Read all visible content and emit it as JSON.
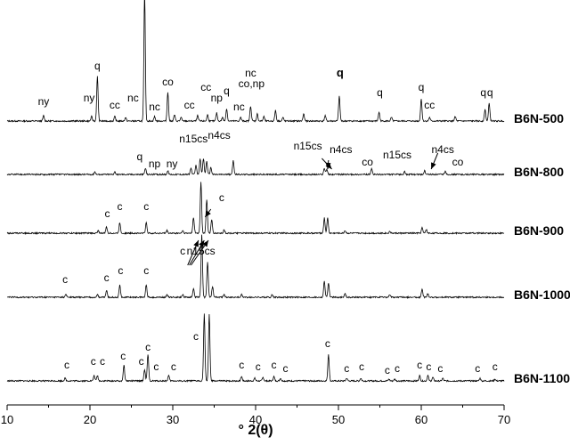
{
  "chart_data": {
    "type": "line",
    "xlabel": "° 2(θ)",
    "xlim": [
      10,
      70
    ],
    "xticks": [
      10,
      20,
      30,
      40,
      50,
      60,
      70
    ],
    "yaxis_visible": false,
    "series": [
      {
        "name": "B6N-500",
        "baseline": 0,
        "peaks": [
          [
            14.4,
            6
          ],
          [
            20.2,
            5
          ],
          [
            20.9,
            50
          ],
          [
            23.0,
            5
          ],
          [
            24.3,
            4
          ],
          [
            26.6,
            145
          ],
          [
            27.8,
            5
          ],
          [
            29.4,
            33
          ],
          [
            30.2,
            7
          ],
          [
            31.0,
            4
          ],
          [
            33.0,
            6
          ],
          [
            34.2,
            7
          ],
          [
            35.3,
            9
          ],
          [
            36.0,
            4
          ],
          [
            36.5,
            14
          ],
          [
            38.2,
            4
          ],
          [
            39.4,
            17
          ],
          [
            40.2,
            8
          ],
          [
            41.0,
            5
          ],
          [
            42.4,
            12
          ],
          [
            43.3,
            4
          ],
          [
            45.8,
            8
          ],
          [
            48.4,
            6
          ],
          [
            50.1,
            28
          ],
          [
            54.9,
            10
          ],
          [
            56.4,
            4
          ],
          [
            60.0,
            25
          ],
          [
            61.0,
            4
          ],
          [
            64.1,
            5
          ],
          [
            67.7,
            13
          ],
          [
            68.2,
            20
          ]
        ],
        "labels": [
          {
            "text": "ny",
            "x": 14.4,
            "y": 18
          },
          {
            "text": "ny",
            "x": 19.9,
            "y": 22
          },
          {
            "text": "q",
            "x": 20.9,
            "y": 58
          },
          {
            "text": "cc",
            "x": 23.0,
            "y": 14
          },
          {
            "text": "nc",
            "x": 25.2,
            "y": 22
          },
          {
            "text": "nc",
            "x": 27.8,
            "y": 12
          },
          {
            "text": "co",
            "x": 29.4,
            "y": 40
          },
          {
            "text": "cc",
            "x": 32.0,
            "y": 14
          },
          {
            "text": "cc",
            "x": 34.0,
            "y": 34
          },
          {
            "text": "np",
            "x": 35.3,
            "y": 22
          },
          {
            "text": "q",
            "x": 36.5,
            "y": 30
          },
          {
            "text": "nc",
            "x": 38.0,
            "y": 12
          },
          {
            "text": "nc",
            "x": 39.4,
            "y": 50
          },
          {
            "text": "co,np",
            "x": 39.5,
            "y": 38
          },
          {
            "text": "q",
            "x": 50.2,
            "y": 50,
            "bold": true
          },
          {
            "text": "q",
            "x": 55.0,
            "y": 28
          },
          {
            "text": "q",
            "x": 60.0,
            "y": 34
          },
          {
            "text": "cc",
            "x": 61.0,
            "y": 14
          },
          {
            "text": "q",
            "x": 67.5,
            "y": 28
          },
          {
            "text": "q",
            "x": 68.3,
            "y": 28
          }
        ]
      },
      {
        "name": "B6N-800",
        "baseline": 0,
        "peaks": [
          [
            20.6,
            3
          ],
          [
            23.0,
            3
          ],
          [
            26.7,
            7
          ],
          [
            29.4,
            4
          ],
          [
            32.2,
            7
          ],
          [
            32.8,
            10
          ],
          [
            33.3,
            17
          ],
          [
            33.7,
            18
          ],
          [
            34.1,
            15
          ],
          [
            34.6,
            8
          ],
          [
            37.3,
            16
          ],
          [
            48.3,
            7
          ],
          [
            48.6,
            6
          ],
          [
            54.0,
            6
          ],
          [
            58.0,
            3
          ],
          [
            60.4,
            4
          ],
          [
            62.9,
            4
          ]
        ],
        "labels": [
          {
            "text": "q",
            "x": 26.0,
            "y": 16
          },
          {
            "text": "np",
            "x": 27.8,
            "y": 8
          },
          {
            "text": "ny",
            "x": 29.9,
            "y": 8
          },
          {
            "text": "n15cs",
            "x": 32.5,
            "y": 36
          },
          {
            "text": "n4cs",
            "x": 35.6,
            "y": 40
          },
          {
            "text": "n15cs",
            "x": 46.3,
            "y": 28
          },
          {
            "text": "n4cs",
            "x": 50.3,
            "y": 24
          },
          {
            "text": "co",
            "x": 53.5,
            "y": 10
          },
          {
            "text": "n15cs",
            "x": 57.1,
            "y": 18
          },
          {
            "text": "n4cs",
            "x": 62.6,
            "y": 24
          },
          {
            "text": "co",
            "x": 64.4,
            "y": 10
          }
        ]
      },
      {
        "name": "B6N-900",
        "baseline": 0,
        "peaks": [
          [
            21.0,
            3
          ],
          [
            22.0,
            7
          ],
          [
            23.6,
            12
          ],
          [
            26.8,
            12
          ],
          [
            29.3,
            3
          ],
          [
            31.2,
            3
          ],
          [
            32.5,
            18
          ],
          [
            33.4,
            58
          ],
          [
            34.1,
            38
          ],
          [
            34.7,
            15
          ],
          [
            36.2,
            4
          ],
          [
            48.3,
            17
          ],
          [
            48.7,
            17
          ],
          [
            50.8,
            3
          ],
          [
            56.2,
            2
          ],
          [
            60.1,
            6
          ],
          [
            60.6,
            4
          ]
        ],
        "labels": [
          {
            "text": "c",
            "x": 22.1,
            "y": 18
          },
          {
            "text": "c",
            "x": 23.6,
            "y": 26
          },
          {
            "text": "c",
            "x": 26.8,
            "y": 26
          },
          {
            "text": "c",
            "x": 35.9,
            "y": 36
          }
        ]
      },
      {
        "name": "B6N-1000",
        "baseline": 0,
        "peaks": [
          [
            17.1,
            3
          ],
          [
            20.9,
            3
          ],
          [
            22.0,
            8
          ],
          [
            23.6,
            14
          ],
          [
            26.8,
            14
          ],
          [
            29.3,
            3
          ],
          [
            31.2,
            3
          ],
          [
            32.5,
            10
          ],
          [
            33.5,
            70
          ],
          [
            34.2,
            40
          ],
          [
            34.8,
            12
          ],
          [
            36.2,
            4
          ],
          [
            38.3,
            3
          ],
          [
            42.0,
            3
          ],
          [
            48.3,
            18
          ],
          [
            48.8,
            16
          ],
          [
            50.8,
            4
          ],
          [
            56.2,
            3
          ],
          [
            60.1,
            9
          ],
          [
            60.8,
            4
          ]
        ],
        "labels": [
          {
            "text": "c",
            "x": 17.0,
            "y": 16
          },
          {
            "text": "c",
            "x": 22.0,
            "y": 18
          },
          {
            "text": "c",
            "x": 23.7,
            "y": 26
          },
          {
            "text": "c",
            "x": 26.8,
            "y": 26
          },
          {
            "text": "c",
            "x": 31.2,
            "y": 48
          },
          {
            "text": "n15cs",
            "x": 33.4,
            "y": 48
          }
        ]
      },
      {
        "name": "B6N-1100",
        "baseline": 0,
        "peaks": [
          [
            17.0,
            3
          ],
          [
            20.5,
            6
          ],
          [
            20.9,
            6
          ],
          [
            24.1,
            18
          ],
          [
            26.6,
            13
          ],
          [
            27.0,
            30
          ],
          [
            29.5,
            6
          ],
          [
            33.8,
            75
          ],
          [
            34.4,
            75
          ],
          [
            38.3,
            5
          ],
          [
            39.9,
            3
          ],
          [
            40.9,
            4
          ],
          [
            42.2,
            5
          ],
          [
            43.0,
            3
          ],
          [
            48.8,
            30
          ],
          [
            51.0,
            3
          ],
          [
            52.7,
            3
          ],
          [
            56.1,
            2
          ],
          [
            56.8,
            2
          ],
          [
            59.8,
            6
          ],
          [
            60.8,
            6
          ],
          [
            61.4,
            4
          ],
          [
            62.6,
            3
          ],
          [
            67.1,
            3
          ],
          [
            68.9,
            2
          ]
        ],
        "labels": [
          {
            "text": "c",
            "x": 17.2,
            "y": 14
          },
          {
            "text": "c",
            "x": 20.4,
            "y": 18
          },
          {
            "text": "c",
            "x": 21.5,
            "y": 18
          },
          {
            "text": "c",
            "x": 24.0,
            "y": 24
          },
          {
            "text": "c",
            "x": 26.2,
            "y": 18
          },
          {
            "text": "c",
            "x": 27.0,
            "y": 34
          },
          {
            "text": "c",
            "x": 28.0,
            "y": 12
          },
          {
            "text": "c",
            "x": 30.1,
            "y": 12
          },
          {
            "text": "c",
            "x": 32.8,
            "y": 46
          },
          {
            "text": "c",
            "x": 38.3,
            "y": 14
          },
          {
            "text": "c",
            "x": 40.3,
            "y": 12
          },
          {
            "text": "c",
            "x": 42.2,
            "y": 14
          },
          {
            "text": "c",
            "x": 43.6,
            "y": 10
          },
          {
            "text": "c",
            "x": 48.7,
            "y": 38
          },
          {
            "text": "c",
            "x": 51.0,
            "y": 10
          },
          {
            "text": "c",
            "x": 52.8,
            "y": 12
          },
          {
            "text": "c",
            "x": 55.9,
            "y": 8
          },
          {
            "text": "c",
            "x": 57.1,
            "y": 10
          },
          {
            "text": "c",
            "x": 59.8,
            "y": 14
          },
          {
            "text": "c",
            "x": 60.9,
            "y": 12
          },
          {
            "text": "c",
            "x": 62.3,
            "y": 10
          },
          {
            "text": "c",
            "x": 66.8,
            "y": 10
          },
          {
            "text": "c",
            "x": 68.9,
            "y": 12
          }
        ]
      }
    ]
  }
}
